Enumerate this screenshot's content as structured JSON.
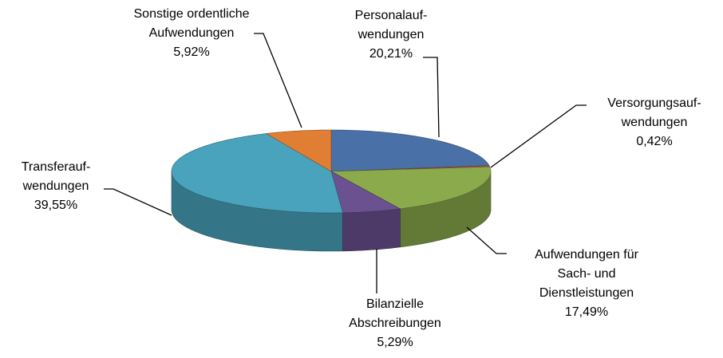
{
  "chart_data": {
    "type": "pie3d",
    "categories": [
      "Personalauf-\nwendungen",
      "Versorgungsauf-\nwendungen",
      "Aufwendungen für\nSach- und\nDienstleistungen",
      "Bilanzielle\nAbschreibungen",
      "Transferauf-\nwendungen",
      "Sonstige ordentliche\nAufwendungen"
    ],
    "values": [
      20.21,
      0.42,
      17.49,
      5.29,
      39.55,
      5.92
    ],
    "value_labels": [
      "20,21%",
      "0,42%",
      "17,49%",
      "5,29%",
      "39,55%",
      "5,92%"
    ],
    "colors": [
      "#4a70a8",
      "#c0504d",
      "#8aaa4c",
      "#6c5190",
      "#4aa3bd",
      "#e07e33"
    ]
  }
}
